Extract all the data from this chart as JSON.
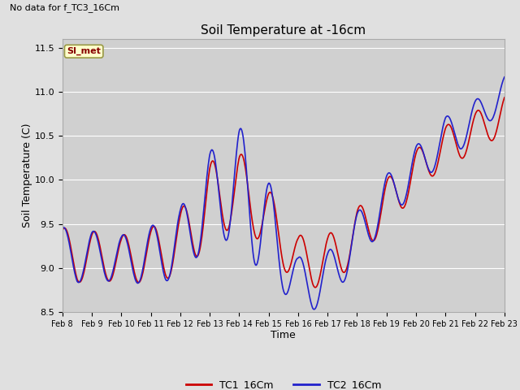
{
  "title": "Soil Temperature at -16cm",
  "xlabel": "Time",
  "ylabel": "Soil Temperature (C)",
  "no_data_text": "No data for f_TC3_16Cm",
  "legend_label1": "TC1_16Cm",
  "legend_label2": "TC2_16Cm",
  "si_met_label": "SI_met",
  "ylim": [
    8.5,
    11.6
  ],
  "yticks": [
    8.5,
    9.0,
    9.5,
    10.0,
    10.5,
    11.0,
    11.5
  ],
  "line_color1": "#cc0000",
  "line_color2": "#2222cc",
  "bg_color": "#e0e0e0",
  "plot_bg_color": "#d0d0d0",
  "si_met_bg": "#ffffcc",
  "si_met_border": "#999944",
  "si_met_text_color": "#880000"
}
